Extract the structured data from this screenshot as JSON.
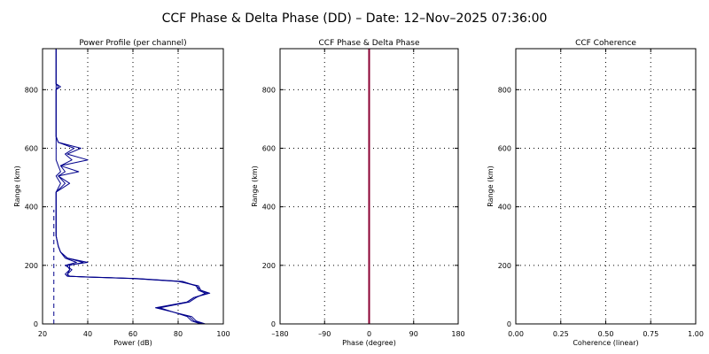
{
  "title": "CCF Phase & Delta Phase (DD) – Date: 12–Nov–2025 07:36:00",
  "colors": {
    "power": "#00008b",
    "phase": "#8b0033",
    "axis": "#000000"
  },
  "chart_data": [
    {
      "type": "line",
      "title": "Power Profile (per channel)",
      "xlabel": "Power (dB)",
      "ylabel": "Range (km)",
      "xlim": [
        20,
        100
      ],
      "ylim": [
        0,
        940
      ],
      "xticks": [
        "20",
        "40",
        "60",
        "80",
        "100"
      ],
      "yticks": [
        "0",
        "200",
        "400",
        "600",
        "800"
      ],
      "xtick_values": [
        20,
        40,
        60,
        80,
        100
      ],
      "ytick_values": [
        0,
        200,
        400,
        600,
        800
      ],
      "grid": true,
      "reference_line_x": 25,
      "series": [
        {
          "x": [
            92,
            88,
            86,
            70,
            84,
            87,
            94,
            90,
            89,
            80,
            60,
            40,
            32,
            31,
            33,
            30,
            35,
            30,
            28,
            27,
            26,
            26,
            26,
            26,
            28,
            26,
            28,
            27,
            26,
            26,
            26,
            26,
            26,
            26,
            26,
            26,
            26,
            26,
            28,
            26,
            26,
            26,
            26,
            26
          ],
          "y": [
            0,
            10,
            25,
            55,
            75,
            90,
            105,
            115,
            130,
            145,
            155,
            160,
            163,
            170,
            185,
            200,
            210,
            225,
            245,
            265,
            300,
            350,
            400,
            450,
            480,
            505,
            520,
            540,
            560,
            580,
            600,
            620,
            640,
            680,
            720,
            760,
            790,
            800,
            810,
            820,
            850,
            880,
            910,
            940
          ]
        },
        {
          "x": [
            90,
            86,
            84,
            72,
            85,
            88,
            92,
            89,
            88,
            82,
            62,
            42,
            31,
            30,
            32,
            31,
            40,
            31,
            28,
            27,
            26,
            26,
            26,
            26,
            32,
            27,
            30,
            28,
            33,
            30,
            34,
            27,
            26,
            26,
            26,
            26,
            26,
            26,
            26,
            26,
            26,
            26,
            26,
            26
          ],
          "y": [
            0,
            10,
            25,
            55,
            75,
            90,
            105,
            115,
            130,
            145,
            155,
            160,
            163,
            170,
            185,
            200,
            210,
            225,
            245,
            265,
            300,
            350,
            400,
            450,
            480,
            505,
            520,
            540,
            560,
            580,
            600,
            620,
            640,
            680,
            720,
            760,
            790,
            800,
            810,
            820,
            850,
            880,
            910,
            940
          ]
        },
        {
          "x": [
            91,
            87,
            85,
            71,
            84,
            87,
            93,
            90,
            88,
            81,
            61,
            41,
            31,
            31,
            32,
            32,
            38,
            31,
            28,
            27,
            26,
            26,
            26,
            26,
            30,
            27,
            36,
            28,
            40,
            31,
            37,
            27,
            26,
            26,
            26,
            26,
            26,
            26,
            27,
            26,
            26,
            26,
            26,
            26
          ],
          "y": [
            0,
            10,
            25,
            55,
            75,
            90,
            105,
            115,
            130,
            145,
            155,
            160,
            163,
            170,
            185,
            200,
            210,
            225,
            245,
            265,
            300,
            350,
            400,
            450,
            480,
            505,
            520,
            540,
            560,
            580,
            600,
            620,
            640,
            680,
            720,
            760,
            790,
            800,
            810,
            820,
            850,
            880,
            910,
            940
          ]
        }
      ]
    },
    {
      "type": "line",
      "title": "CCF Phase & Delta Phase",
      "xlabel": "Phase (degree)",
      "ylabel": "Range (km)",
      "xlim": [
        -180,
        180
      ],
      "ylim": [
        0,
        940
      ],
      "xticks": [
        "–180",
        "–90",
        "0",
        "90",
        "180"
      ],
      "yticks": [
        "0",
        "200",
        "400",
        "600",
        "800"
      ],
      "xtick_values": [
        -180,
        -90,
        0,
        90,
        180
      ],
      "ytick_values": [
        0,
        200,
        400,
        600,
        800
      ],
      "grid": true,
      "series": [
        {
          "x": [
            0,
            0
          ],
          "y": [
            0,
            940
          ]
        }
      ]
    },
    {
      "type": "line",
      "title": "CCF Coherence",
      "xlabel": "Coherence (linear)",
      "ylabel": "Range (km)",
      "xlim": [
        0,
        1
      ],
      "ylim": [
        0,
        940
      ],
      "xticks": [
        "0.00",
        "0.25",
        "0.50",
        "0.75",
        "1.00"
      ],
      "yticks": [
        "0",
        "200",
        "400",
        "600",
        "800"
      ],
      "xtick_values": [
        0,
        0.25,
        0.5,
        0.75,
        1.0
      ],
      "ytick_values": [
        0,
        200,
        400,
        600,
        800
      ],
      "grid": true,
      "series": []
    }
  ]
}
